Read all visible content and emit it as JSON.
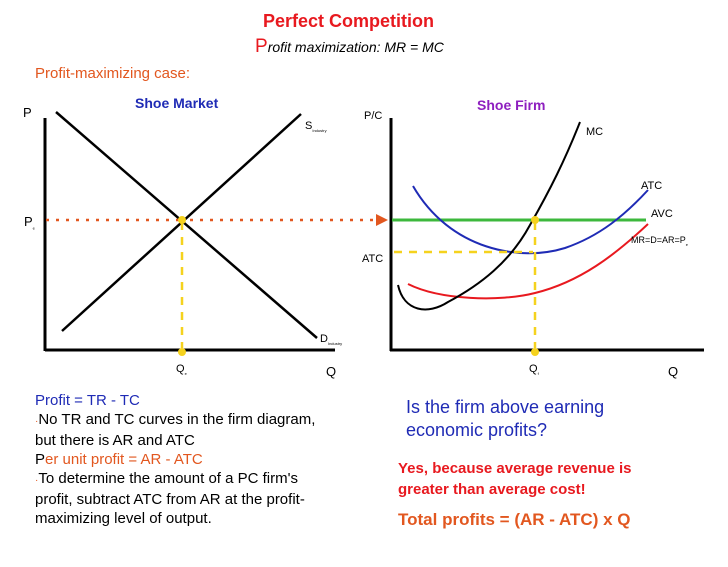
{
  "header": {
    "title": "Perfect Competition",
    "subtitle_initial": "P",
    "subtitle_rest": "rofit maximization: MR = MC",
    "case_label": "Profit-maximizing case:"
  },
  "market": {
    "title": "Shoe Market",
    "p_axis": "P",
    "q_axis": "Q",
    "price_label": "P",
    "price_sub": "e",
    "supply_label": "S",
    "supply_sub": "Industry",
    "demand_label": "D",
    "demand_sub": "Industry",
    "qty_label": "Q",
    "qty_sub": "e"
  },
  "firm": {
    "title": "Shoe Firm",
    "pc_axis": "P/C",
    "q_axis": "Q",
    "mc_label": "MC",
    "atc_curve_label": "ATC",
    "avc_label": "AVC",
    "mr_label": "MR=D=AR=P",
    "mr_sub": "e",
    "atc_level_label": "ATC",
    "qty_label": "Q",
    "qty_sub": "f"
  },
  "notes": {
    "line1": "Profit = TR - TC",
    "line2a": "No TR and TC curves in the firm diagram,",
    "line2b": "but there is AR and ATC",
    "line3_initial": "P",
    "line3_rest": "er unit profit = AR - ATC",
    "line4a": "To determine the amount of a PC firm's",
    "line4b": "profit, subtract ATC from AR at the profit-",
    "line4c": "maximizing level of output."
  },
  "question": {
    "line1": "Is the firm above earning",
    "line2": "economic profits?"
  },
  "answer": {
    "line1": "Yes, because average revenue is",
    "line2": "greater than average cost!",
    "total": "Total profits = (AR - ATC) x Q"
  },
  "colors": {
    "red": "#e8191f",
    "blue": "#1f2bb5",
    "orange": "#e2571f",
    "green": "#3cb83c",
    "yellow": "#f5d21e",
    "black": "#000000"
  }
}
